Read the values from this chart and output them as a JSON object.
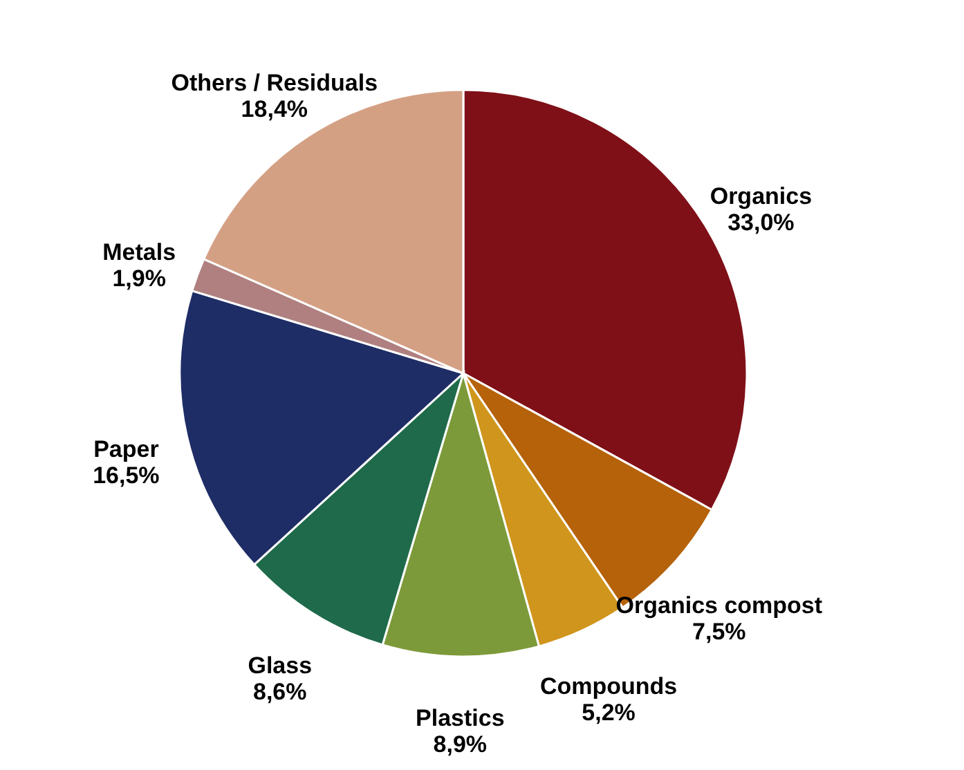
{
  "chart_data": {
    "type": "pie",
    "categories": [
      "Organics",
      "Organics compost",
      "Compounds",
      "Plastics",
      "Glass",
      "Paper",
      "Metals",
      "Others / Residuals"
    ],
    "values": [
      33.0,
      7.5,
      5.2,
      8.9,
      8.6,
      16.5,
      1.9,
      18.4
    ],
    "colors": [
      "#7f1018",
      "#b5620a",
      "#d0951c",
      "#7d9a3a",
      "#1e6a4a",
      "#1f2d66",
      "#b08080",
      "#d4a084"
    ],
    "value_labels": [
      "33,0%",
      "7,5%",
      "5,2%",
      "8,9%",
      "8,6%",
      "16,5%",
      "1,9%",
      "18,4%"
    ],
    "legend": false
  }
}
